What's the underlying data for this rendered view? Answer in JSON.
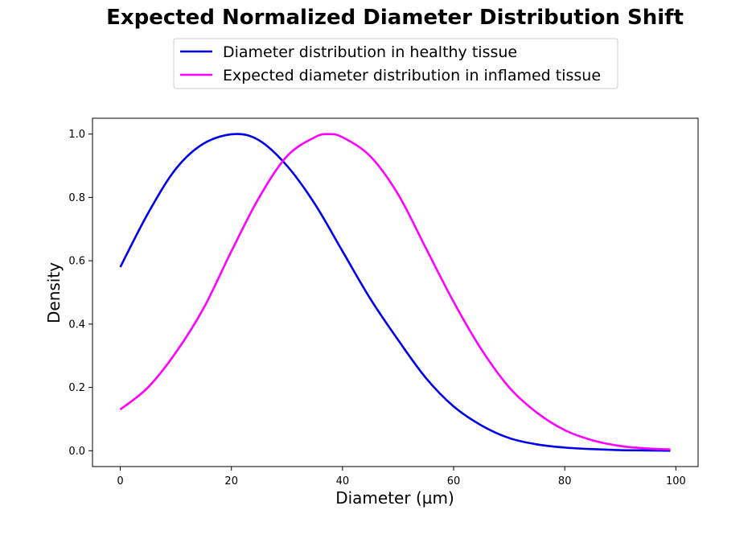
{
  "chart_data": {
    "type": "line",
    "title": "Expected Normalized Diameter Distribution Shift",
    "xlabel": "Diameter (µm)",
    "ylabel": "Density",
    "xlim": [
      -5,
      104
    ],
    "ylim": [
      -0.05,
      1.05
    ],
    "xticks": [
      0,
      20,
      40,
      60,
      80,
      100
    ],
    "xtick_labels": [
      "0",
      "20",
      "40",
      "60",
      "80",
      "100"
    ],
    "yticks": [
      0.0,
      0.2,
      0.4,
      0.6,
      0.8,
      1.0
    ],
    "ytick_labels": [
      "0.0",
      "0.2",
      "0.4",
      "0.6",
      "0.8",
      "1.0"
    ],
    "grid": false,
    "legend_position": "top-center, above plot",
    "series": [
      {
        "name": "Diameter distribution in healthy tissue",
        "color": "#0000ee",
        "x": [
          0,
          5,
          10,
          15,
          20.5,
          25,
          30,
          35,
          40,
          45,
          50,
          55,
          60,
          65,
          70,
          75,
          80,
          85,
          90,
          95,
          99
        ],
        "y": [
          0.58,
          0.75,
          0.89,
          0.97,
          1.0,
          0.98,
          0.9,
          0.78,
          0.63,
          0.48,
          0.35,
          0.23,
          0.14,
          0.08,
          0.04,
          0.02,
          0.01,
          0.005,
          0.002,
          0.001,
          0.0
        ]
      },
      {
        "name": "Expected diameter distribution in inflamed tissue",
        "color": "#ff00ff",
        "x": [
          0,
          5,
          10,
          15,
          20,
          25,
          30,
          35,
          37.5,
          40,
          45,
          50,
          55,
          60,
          65,
          70,
          75,
          80,
          85,
          90,
          95,
          99
        ],
        "y": [
          0.13,
          0.2,
          0.31,
          0.45,
          0.63,
          0.8,
          0.93,
          0.99,
          1.0,
          0.99,
          0.93,
          0.81,
          0.64,
          0.47,
          0.32,
          0.2,
          0.12,
          0.065,
          0.033,
          0.015,
          0.007,
          0.004
        ]
      }
    ]
  }
}
